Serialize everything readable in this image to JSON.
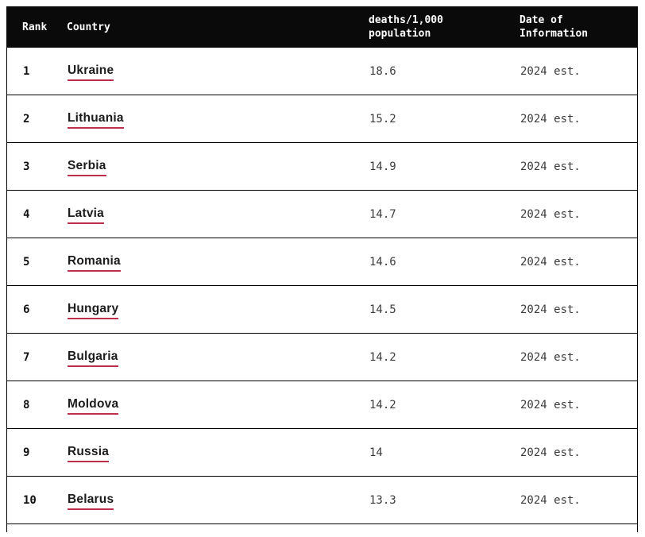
{
  "colors": {
    "header_bg": "#0a0a0a",
    "header_text": "#ffffff",
    "row_border": "#000000",
    "link_underline": "#bd2e4d",
    "value_text": "#3d3d3d"
  },
  "table": {
    "header": {
      "rank": "Rank",
      "country": "Country",
      "deaths_line1": "deaths/1,000",
      "deaths_line2": "population",
      "date_line1": "Date of",
      "date_line2": "Information"
    },
    "rows": [
      {
        "rank": "1",
        "country": "Ukraine",
        "deaths": "18.6",
        "date": "2024 est."
      },
      {
        "rank": "2",
        "country": "Lithuania",
        "deaths": "15.2",
        "date": "2024 est."
      },
      {
        "rank": "3",
        "country": "Serbia",
        "deaths": "14.9",
        "date": "2024 est."
      },
      {
        "rank": "4",
        "country": "Latvia",
        "deaths": "14.7",
        "date": "2024 est."
      },
      {
        "rank": "5",
        "country": "Romania",
        "deaths": "14.6",
        "date": "2024 est."
      },
      {
        "rank": "6",
        "country": "Hungary",
        "deaths": "14.5",
        "date": "2024 est."
      },
      {
        "rank": "7",
        "country": "Bulgaria",
        "deaths": "14.2",
        "date": "2024 est."
      },
      {
        "rank": "8",
        "country": "Moldova",
        "deaths": "14.2",
        "date": "2024 est."
      },
      {
        "rank": "9",
        "country": "Russia",
        "deaths": "14",
        "date": "2024 est."
      },
      {
        "rank": "10",
        "country": "Belarus",
        "deaths": "13.3",
        "date": "2024 est."
      }
    ]
  }
}
